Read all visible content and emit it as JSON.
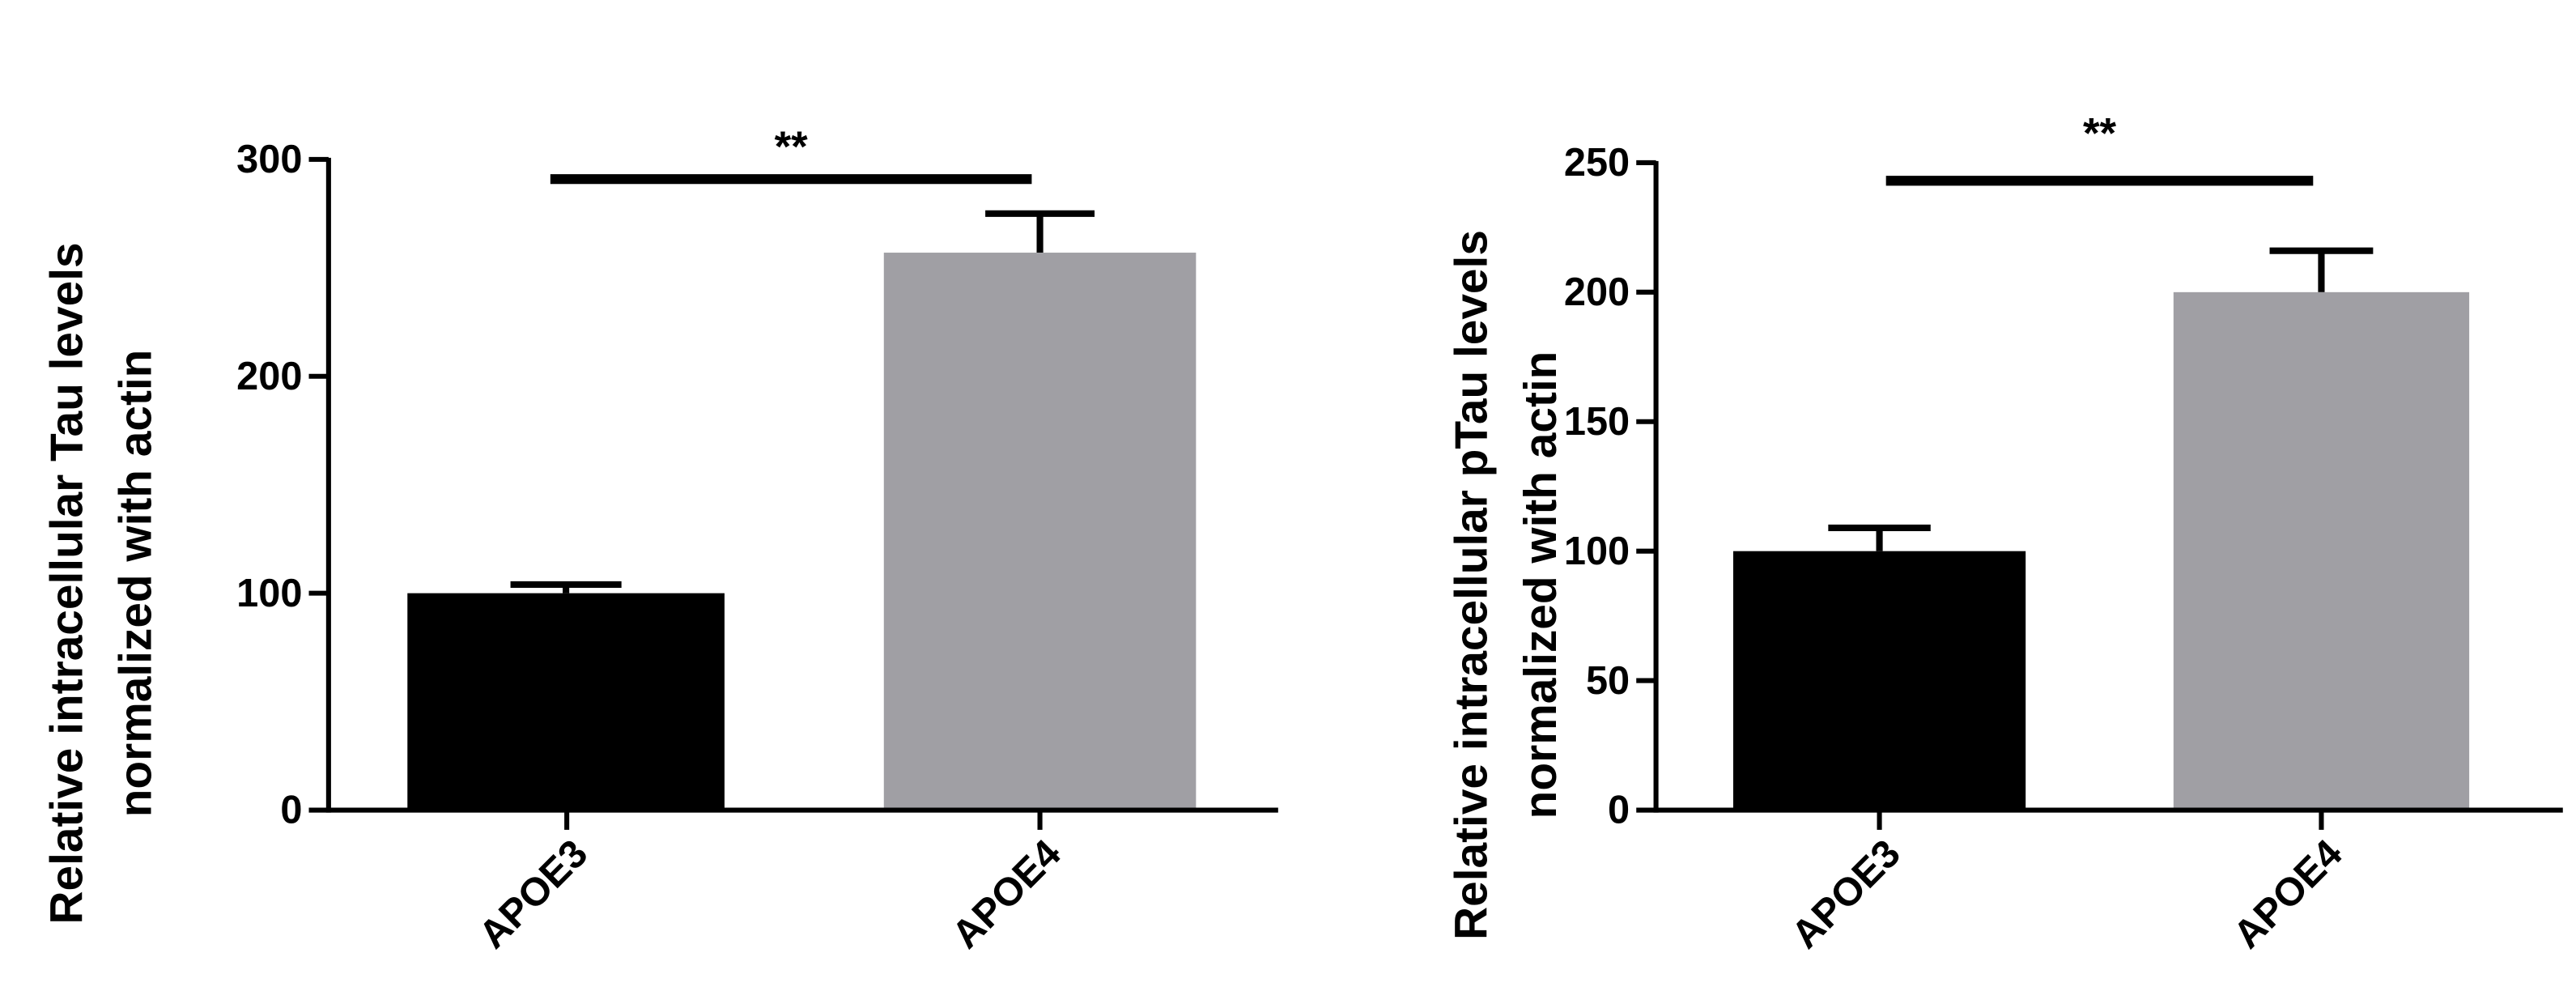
{
  "chart_data": [
    {
      "type": "bar",
      "annotation": "**",
      "ylabel": [
        "Relative intracellular Tau levels",
        "normalized with actin"
      ],
      "categories": [
        "APOE3",
        "APOE4"
      ],
      "values": [
        100,
        257
      ],
      "errors": [
        4,
        18
      ],
      "colors": [
        "#000000",
        "#a09fa4"
      ],
      "ylim": [
        0,
        300
      ],
      "yticks": [
        0,
        100,
        200,
        300
      ]
    },
    {
      "type": "bar",
      "annotation": "**",
      "ylabel": [
        "Relative intracellular pTau levels",
        "normalized with actin"
      ],
      "categories": [
        "APOE3",
        "APOE4"
      ],
      "values": [
        100,
        200
      ],
      "errors": [
        9,
        16
      ],
      "colors": [
        "#000000",
        "#a09fa4"
      ],
      "ylim": [
        0,
        250
      ],
      "yticks": [
        0,
        50,
        100,
        150,
        200,
        250
      ]
    }
  ]
}
